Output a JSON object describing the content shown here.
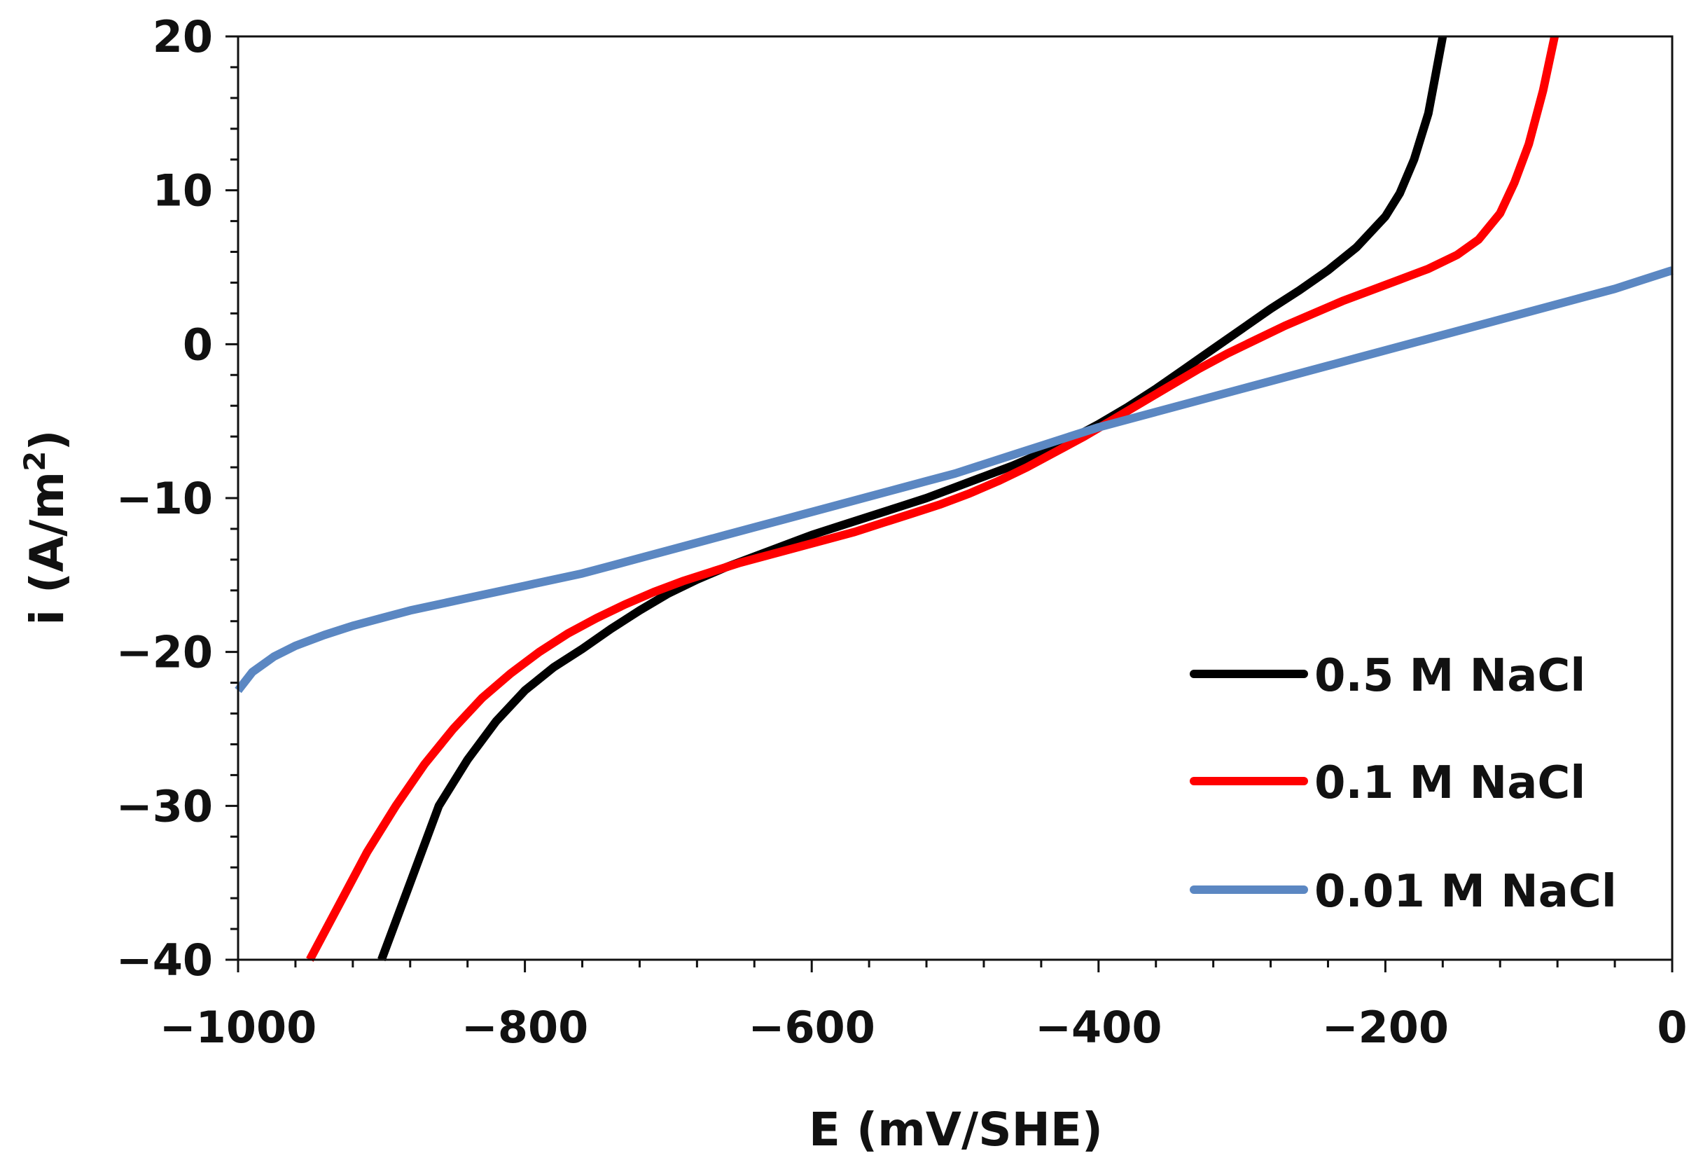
{
  "chart_data": {
    "type": "line",
    "title": "",
    "xlabel": "E (mV/SHE)",
    "ylabel_main": "i (A/m",
    "ylabel_sup": "2",
    "ylabel_close": ")",
    "xlim": [
      -1000,
      0
    ],
    "ylim": [
      -40,
      20
    ],
    "x_ticks": [
      -1000,
      -800,
      -600,
      -400,
      -200,
      0
    ],
    "x_tick_labels": [
      "−1000",
      "−800",
      "−600",
      "−400",
      "−200",
      "0"
    ],
    "x_minor_step": 40,
    "y_ticks": [
      -40,
      -30,
      -20,
      -10,
      0,
      10,
      20
    ],
    "y_tick_labels": [
      "−40",
      "−30",
      "−20",
      "−10",
      "0",
      "10",
      "20"
    ],
    "y_minor_step": 2,
    "grid": false,
    "legend_position": "bottom-right",
    "series": [
      {
        "name": "0.5 M NaCl",
        "color": "#000000",
        "points": [
          [
            -900,
            -40
          ],
          [
            -880,
            -35
          ],
          [
            -860,
            -30
          ],
          [
            -840,
            -27
          ],
          [
            -820,
            -24.5
          ],
          [
            -800,
            -22.5
          ],
          [
            -780,
            -21
          ],
          [
            -760,
            -19.8
          ],
          [
            -740,
            -18.5
          ],
          [
            -720,
            -17.3
          ],
          [
            -700,
            -16.2
          ],
          [
            -680,
            -15.3
          ],
          [
            -660,
            -14.5
          ],
          [
            -640,
            -13.8
          ],
          [
            -620,
            -13.1
          ],
          [
            -600,
            -12.4
          ],
          [
            -580,
            -11.8
          ],
          [
            -560,
            -11.2
          ],
          [
            -540,
            -10.6
          ],
          [
            -520,
            -10.0
          ],
          [
            -500,
            -9.3
          ],
          [
            -480,
            -8.6
          ],
          [
            -460,
            -7.9
          ],
          [
            -440,
            -7.1
          ],
          [
            -420,
            -6.2
          ],
          [
            -400,
            -5.2
          ],
          [
            -380,
            -4.1
          ],
          [
            -360,
            -2.9
          ],
          [
            -340,
            -1.6
          ],
          [
            -320,
            -0.3
          ],
          [
            -300,
            1.0
          ],
          [
            -280,
            2.3
          ],
          [
            -260,
            3.5
          ],
          [
            -240,
            4.8
          ],
          [
            -220,
            6.3
          ],
          [
            -200,
            8.3
          ],
          [
            -190,
            9.8
          ],
          [
            -180,
            12.0
          ],
          [
            -170,
            15.0
          ],
          [
            -165,
            17.5
          ],
          [
            -160,
            20
          ]
        ]
      },
      {
        "name": "0.1 M NaCl",
        "color": "#ff0000",
        "points": [
          [
            -950,
            -40
          ],
          [
            -930,
            -36.5
          ],
          [
            -910,
            -33
          ],
          [
            -890,
            -30
          ],
          [
            -870,
            -27.3
          ],
          [
            -850,
            -25
          ],
          [
            -830,
            -23
          ],
          [
            -810,
            -21.4
          ],
          [
            -790,
            -20
          ],
          [
            -770,
            -18.8
          ],
          [
            -750,
            -17.8
          ],
          [
            -730,
            -16.9
          ],
          [
            -710,
            -16.1
          ],
          [
            -690,
            -15.4
          ],
          [
            -670,
            -14.8
          ],
          [
            -650,
            -14.2
          ],
          [
            -630,
            -13.7
          ],
          [
            -610,
            -13.2
          ],
          [
            -590,
            -12.7
          ],
          [
            -570,
            -12.2
          ],
          [
            -550,
            -11.6
          ],
          [
            -530,
            -11.0
          ],
          [
            -510,
            -10.4
          ],
          [
            -490,
            -9.7
          ],
          [
            -470,
            -8.9
          ],
          [
            -450,
            -8.0
          ],
          [
            -430,
            -7.0
          ],
          [
            -410,
            -6.0
          ],
          [
            -390,
            -4.9
          ],
          [
            -370,
            -3.8
          ],
          [
            -350,
            -2.7
          ],
          [
            -330,
            -1.6
          ],
          [
            -310,
            -0.6
          ],
          [
            -290,
            0.3
          ],
          [
            -270,
            1.2
          ],
          [
            -250,
            2.0
          ],
          [
            -230,
            2.8
          ],
          [
            -210,
            3.5
          ],
          [
            -190,
            4.2
          ],
          [
            -170,
            4.9
          ],
          [
            -150,
            5.8
          ],
          [
            -135,
            6.8
          ],
          [
            -120,
            8.5
          ],
          [
            -110,
            10.5
          ],
          [
            -100,
            13.0
          ],
          [
            -90,
            16.5
          ],
          [
            -82,
            20
          ]
        ]
      },
      {
        "name": "0.01 M NaCl",
        "color": "#5b87c2",
        "points": [
          [
            -1000,
            -22.5
          ],
          [
            -990,
            -21.3
          ],
          [
            -975,
            -20.3
          ],
          [
            -960,
            -19.6
          ],
          [
            -940,
            -18.9
          ],
          [
            -920,
            -18.3
          ],
          [
            -900,
            -17.8
          ],
          [
            -880,
            -17.3
          ],
          [
            -860,
            -16.9
          ],
          [
            -840,
            -16.5
          ],
          [
            -820,
            -16.1
          ],
          [
            -800,
            -15.7
          ],
          [
            -780,
            -15.3
          ],
          [
            -760,
            -14.9
          ],
          [
            -740,
            -14.4
          ],
          [
            -720,
            -13.9
          ],
          [
            -700,
            -13.4
          ],
          [
            -680,
            -12.9
          ],
          [
            -660,
            -12.4
          ],
          [
            -640,
            -11.9
          ],
          [
            -620,
            -11.4
          ],
          [
            -600,
            -10.9
          ],
          [
            -580,
            -10.4
          ],
          [
            -560,
            -9.9
          ],
          [
            -540,
            -9.4
          ],
          [
            -520,
            -8.9
          ],
          [
            -500,
            -8.4
          ],
          [
            -480,
            -7.8
          ],
          [
            -460,
            -7.2
          ],
          [
            -440,
            -6.6
          ],
          [
            -420,
            -6.0
          ],
          [
            -400,
            -5.4
          ],
          [
            -380,
            -4.9
          ],
          [
            -360,
            -4.4
          ],
          [
            -340,
            -3.9
          ],
          [
            -320,
            -3.4
          ],
          [
            -300,
            -2.9
          ],
          [
            -280,
            -2.4
          ],
          [
            -260,
            -1.9
          ],
          [
            -240,
            -1.4
          ],
          [
            -220,
            -0.9
          ],
          [
            -200,
            -0.4
          ],
          [
            -180,
            0.1
          ],
          [
            -160,
            0.6
          ],
          [
            -140,
            1.1
          ],
          [
            -120,
            1.6
          ],
          [
            -100,
            2.1
          ],
          [
            -80,
            2.6
          ],
          [
            -60,
            3.1
          ],
          [
            -40,
            3.6
          ],
          [
            -20,
            4.2
          ],
          [
            0,
            4.8
          ]
        ]
      }
    ]
  }
}
